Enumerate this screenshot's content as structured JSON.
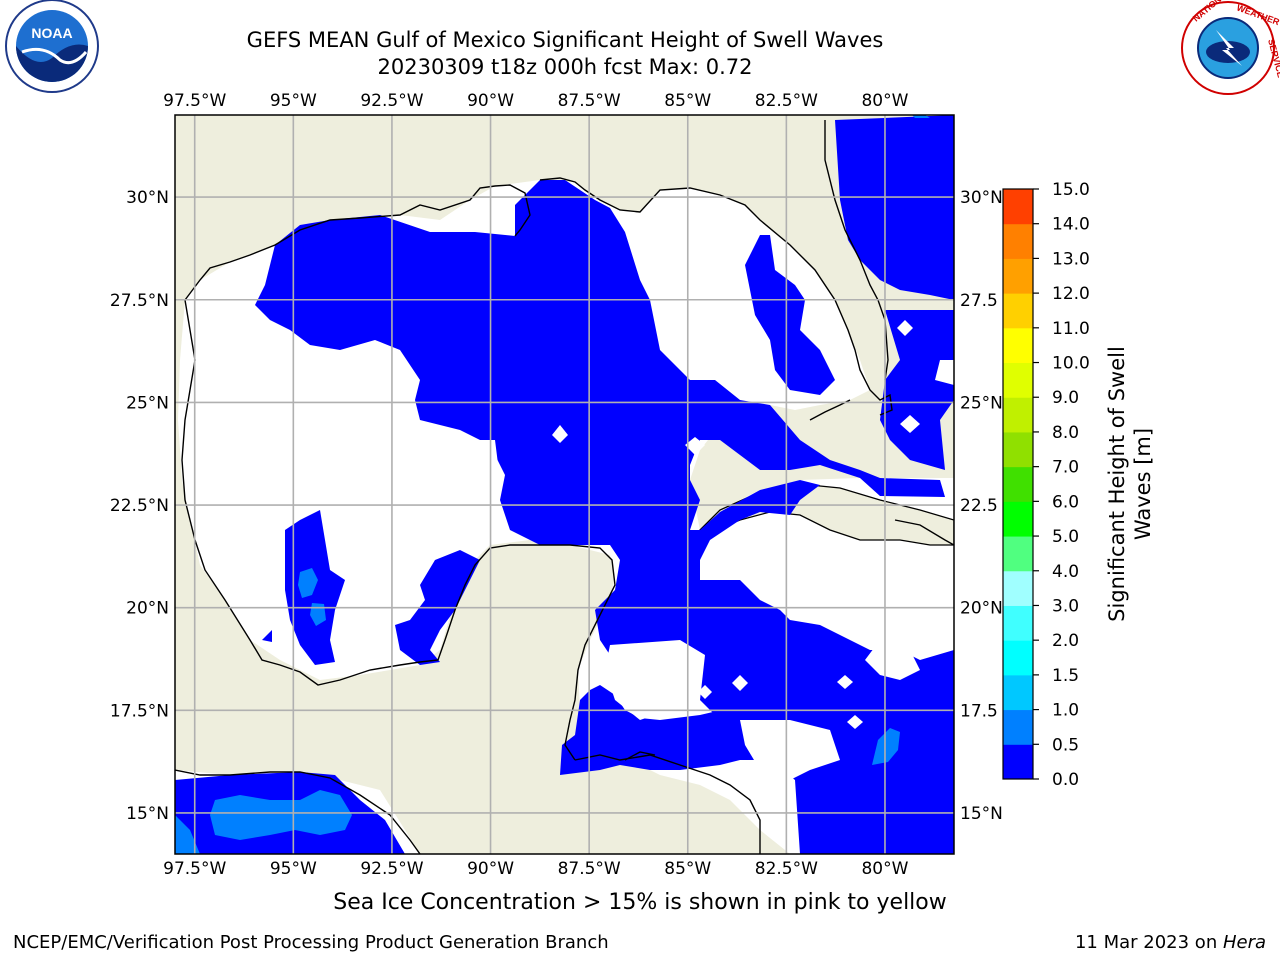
{
  "title": {
    "line1": "GEFS MEAN Gulf of Mexico Significant Height of Swell Waves",
    "line2": "20230309 t18z 000h fcst   Max: 0.72"
  },
  "logos": {
    "left": {
      "icon": "noaa-logo",
      "text": "NOAA"
    },
    "right": {
      "icon": "national-weather-service-logo",
      "text": "NATIONAL WEATHER SERVICE"
    }
  },
  "map": {
    "projection": "plate-carree",
    "lon_range": [
      -98.0,
      -78.25
    ],
    "lat_range": [
      14.0,
      32.0
    ],
    "colors": {
      "land": "#eeeedd",
      "ocean_no_data": "#ffffff",
      "grid": "#b0b0b0",
      "coast": "#000000"
    },
    "lon_ticks": [
      {
        "lon": -97.5,
        "label": "97.5°W"
      },
      {
        "lon": -95.0,
        "label": "95°W"
      },
      {
        "lon": -92.5,
        "label": "92.5°W"
      },
      {
        "lon": -90.0,
        "label": "90°W"
      },
      {
        "lon": -87.5,
        "label": "87.5°W"
      },
      {
        "lon": -85.0,
        "label": "85°W"
      },
      {
        "lon": -82.5,
        "label": "82.5°W"
      },
      {
        "lon": -80.0,
        "label": "80°W"
      }
    ],
    "lat_ticks": [
      {
        "lat": 30.0,
        "label": "30°N"
      },
      {
        "lat": 27.5,
        "label": "27.5°N"
      },
      {
        "lat": 25.0,
        "label": "25°N"
      },
      {
        "lat": 22.5,
        "label": "22.5°N"
      },
      {
        "lat": 20.0,
        "label": "20°N"
      },
      {
        "lat": 17.5,
        "label": "17.5°N"
      },
      {
        "lat": 15.0,
        "label": "15°N"
      }
    ],
    "right_lat_labels": [
      "30°N",
      "27.5",
      "25°N",
      "22.5",
      "20°N",
      "17.5",
      "15°N"
    ]
  },
  "colorbar": {
    "label_line1": "Significant Height of Swell",
    "label_line2": "Waves [m]",
    "levels": [
      0.0,
      0.5,
      1.0,
      1.5,
      2.0,
      3.0,
      4.0,
      5.0,
      6.0,
      7.0,
      8.0,
      9.0,
      10.0,
      11.0,
      12.0,
      13.0,
      14.0,
      15.0
    ],
    "tick_labels": [
      "0.0",
      "0.5",
      "1.0",
      "1.5",
      "2.0",
      "3.0",
      "4.0",
      "5.0",
      "6.0",
      "7.0",
      "8.0",
      "9.0",
      "10.0",
      "11.0",
      "12.0",
      "13.0",
      "14.0",
      "15.0"
    ],
    "colors": [
      "#0000ff",
      "#0080ff",
      "#00c8ff",
      "#00ffff",
      "#40ffff",
      "#a0ffff",
      "#50ff80",
      "#00ff00",
      "#40e000",
      "#90e000",
      "#c0f000",
      "#e0ff00",
      "#ffff00",
      "#ffd000",
      "#ffa000",
      "#ff8000",
      "#ff4000",
      "#ff0000"
    ]
  },
  "footnote": "Sea Ice Concentration > 15% is shown in pink to yellow",
  "credit": "NCEP/EMC/Verification Post Processing Product Generation Branch",
  "date": "11 Mar 2023 on ",
  "machine": "Hera"
}
